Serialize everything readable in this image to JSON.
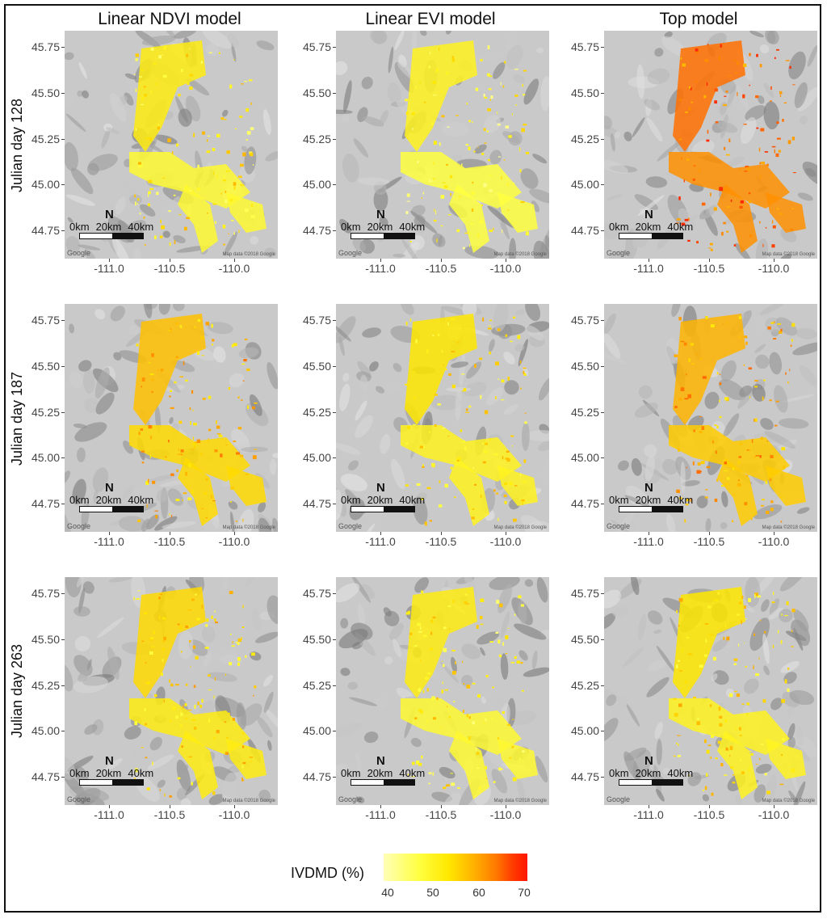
{
  "columns": [
    "Linear NDVI model",
    "Linear EVI model",
    "Top model"
  ],
  "rows": [
    "Julian day 128",
    "Julian day 187",
    "Julian day 263"
  ],
  "y_ticks": [
    "45.75",
    "45.50",
    "45.25",
    "45.00",
    "44.75"
  ],
  "x_ticks": [
    "-111.0",
    "-110.5",
    "-110.0"
  ],
  "scale_labels": [
    "0km",
    "20km",
    "40km"
  ],
  "north_symbol": "N",
  "attribution": "Google",
  "map_data": "Map data ©2018 Google",
  "legend": {
    "title": "IVDMD (%)",
    "ticks": [
      "40",
      "50",
      "60",
      "70"
    ],
    "range": [
      40,
      70
    ],
    "colors": [
      "#ffffb8",
      "#ffff40",
      "#ffb400",
      "#ff1500"
    ]
  },
  "panel_intensity": [
    [
      0.25,
      0.2,
      0.72
    ],
    [
      0.45,
      0.3,
      0.5
    ],
    [
      0.35,
      0.25,
      0.3
    ]
  ]
}
